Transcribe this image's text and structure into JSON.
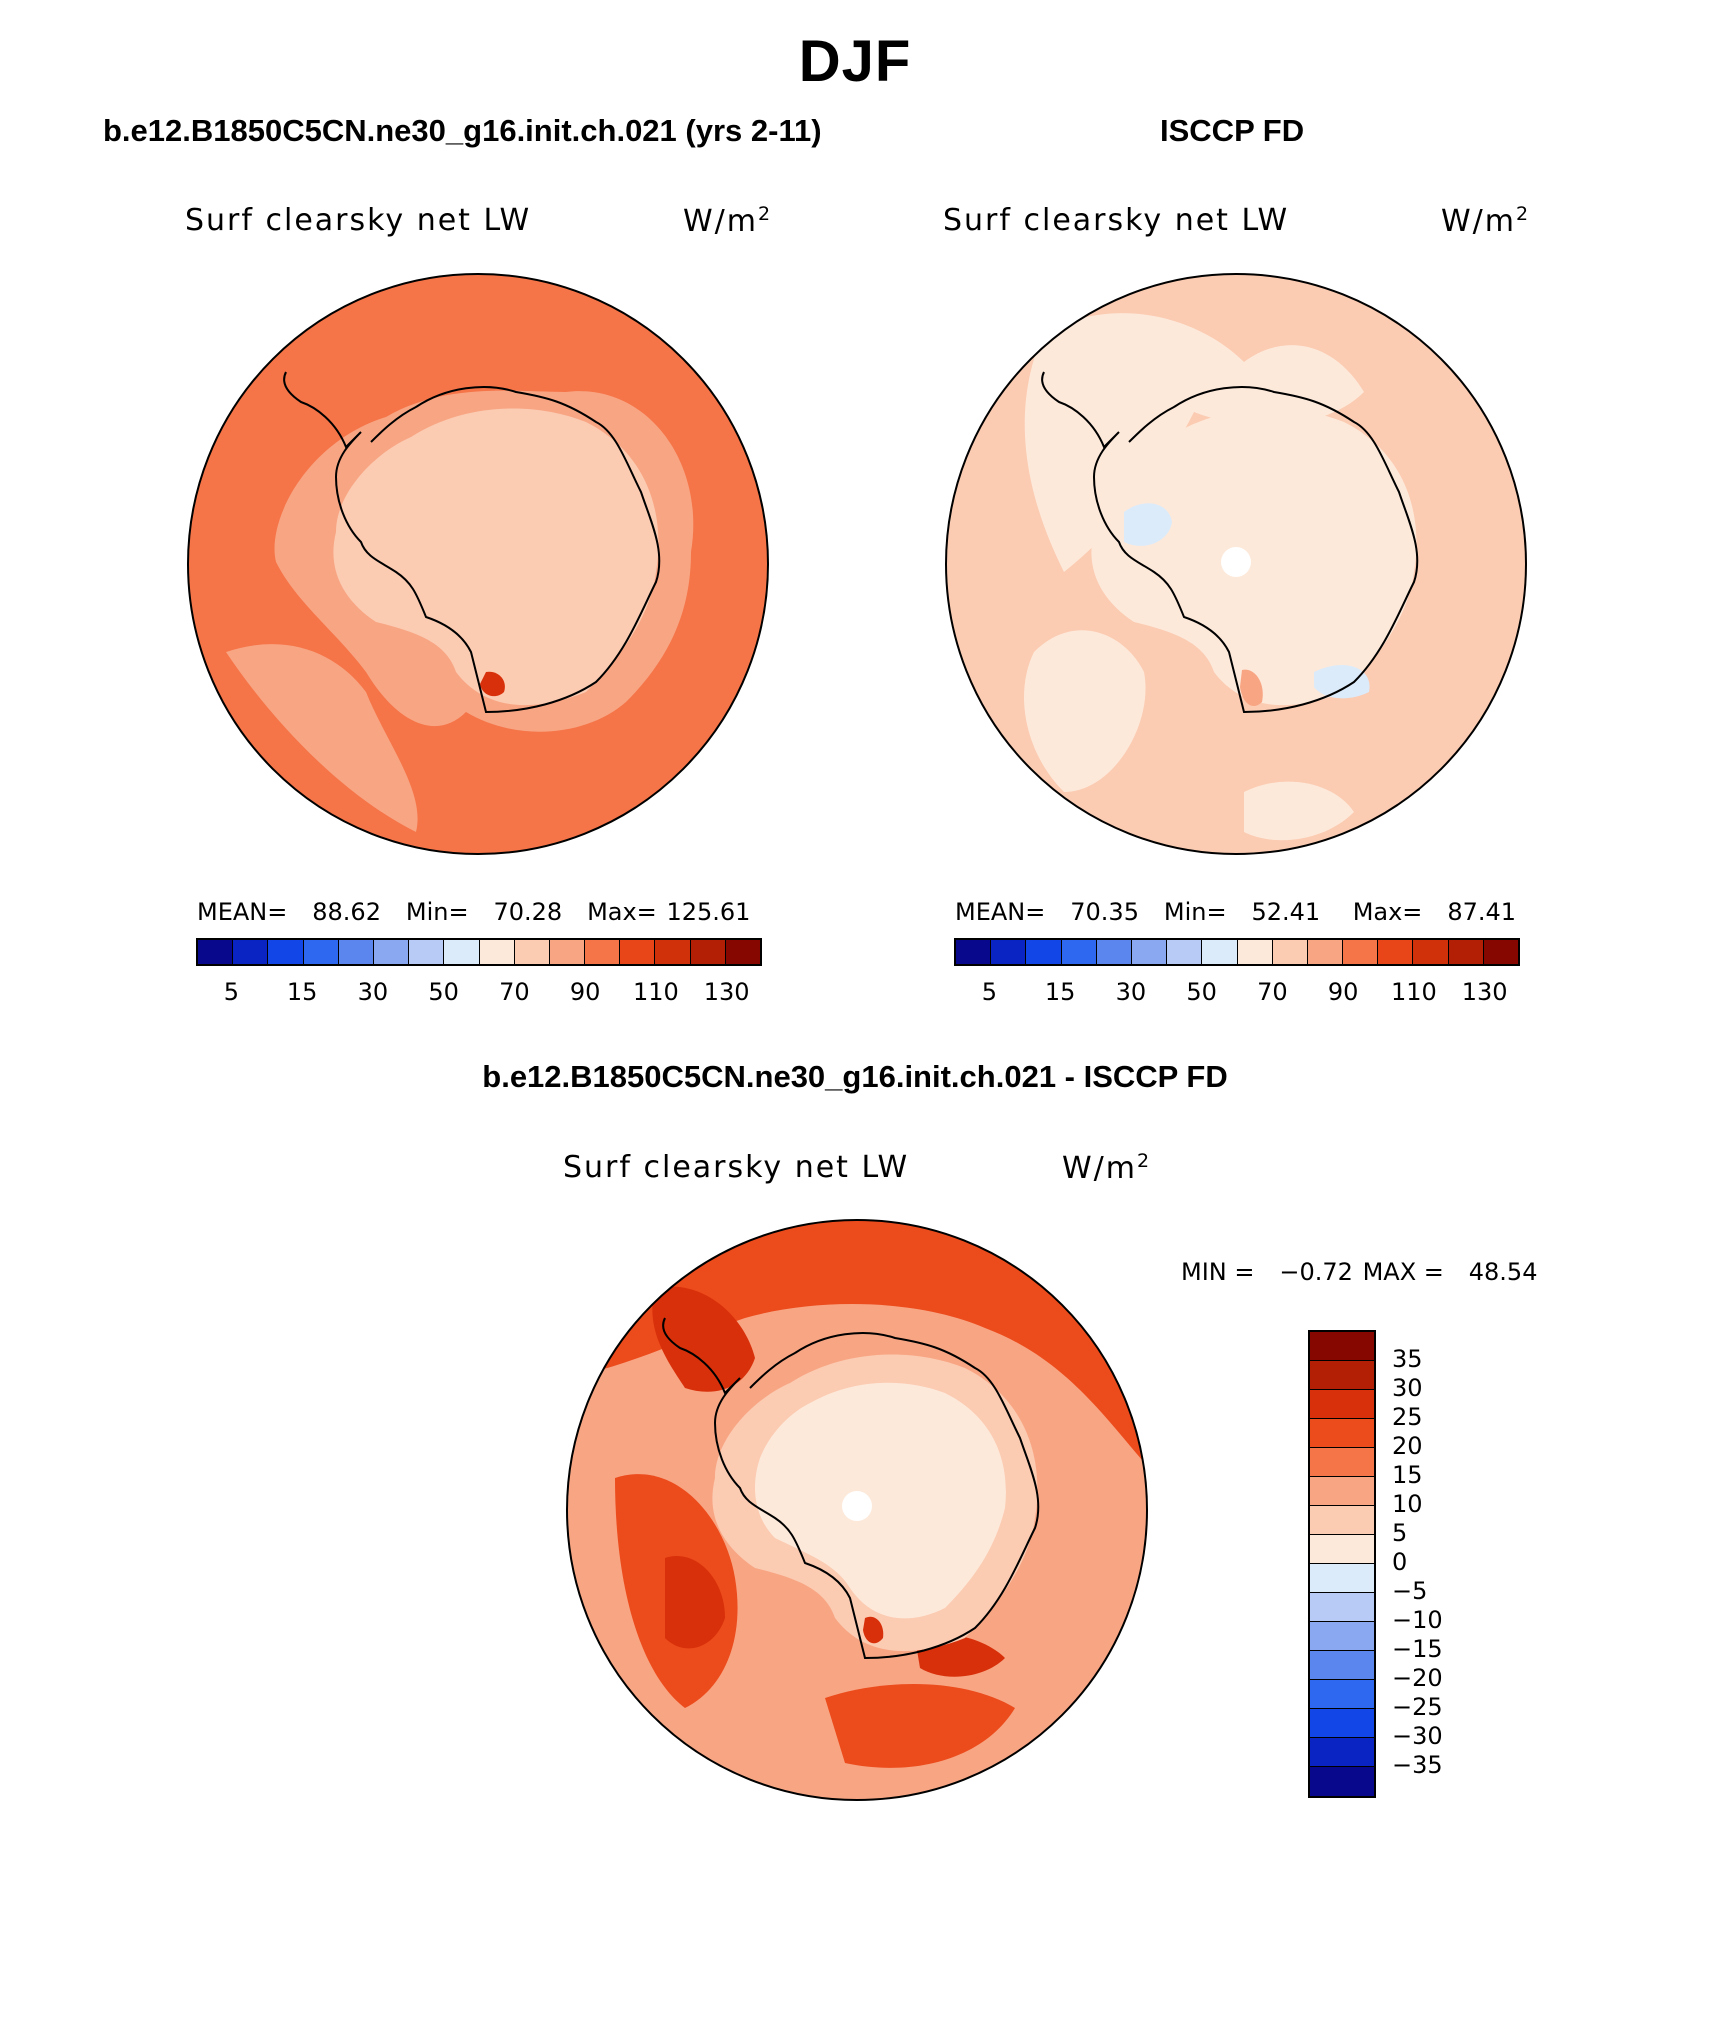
{
  "figure_title": "DJF",
  "panels": {
    "model": {
      "title": "b.e12.B1850C5CN.ne30_g16.init.ch.021 (yrs 2-11)",
      "variable": "Surf clearsky net LW",
      "units_base": "W/m",
      "units_exp": "2",
      "mean_label": "MEAN=",
      "mean": "88.62",
      "min_label": "Min=",
      "min": "70.28",
      "max_label": "Max=",
      "max": "125.61",
      "ocean_level": "90–110",
      "continent_level": "70–90"
    },
    "obs": {
      "title": "ISCCP FD",
      "variable": "Surf clearsky net LW",
      "units_base": "W/m",
      "units_exp": "2",
      "mean_label": "MEAN=",
      "mean": "70.35",
      "min_label": "Min=",
      "min": "52.41",
      "max_label": "Max=",
      "max": "87.41",
      "ocean_level": "70–90",
      "continent_level": "50–70"
    },
    "diff": {
      "title": "b.e12.B1850C5CN.ne30_g16.init.ch.021 - ISCCP FD",
      "variable": "Surf clearsky net LW",
      "units_base": "W/m",
      "units_exp": "2",
      "min_label": "MIN =",
      "min": "−0.72",
      "max_label": "MAX =",
      "max": "48.54",
      "ocean_level": "15–25",
      "continent_level": "0–10"
    }
  },
  "colorbars": {
    "abs": {
      "colors": [
        "#08088c",
        "#0a24c4",
        "#1346e6",
        "#2f68f0",
        "#5a86ee",
        "#8aa8f2",
        "#b7cbf6",
        "#dcebfa",
        "#fde9da",
        "#fbcbb2",
        "#f8a583",
        "#f57448",
        "#e84618",
        "#d0300a",
        "#b31f05",
        "#860600"
      ],
      "tick_labels": [
        "5",
        "15",
        "30",
        "50",
        "70",
        "90",
        "110",
        "130"
      ]
    },
    "diff": {
      "colors": [
        "#860600",
        "#b31f05",
        "#d8300a",
        "#ec4b1c",
        "#f57448",
        "#f8a583",
        "#fbcbb2",
        "#fde9da",
        "#dcebfa",
        "#b7cbf6",
        "#8aa8f2",
        "#5a86ee",
        "#2f68f0",
        "#1346e6",
        "#0a24c4",
        "#08088c"
      ],
      "tick_labels": [
        "35",
        "30",
        "25",
        "20",
        "15",
        "10",
        "5",
        "0",
        "−5",
        "−10",
        "−15",
        "−20",
        "−25",
        "−30",
        "−35"
      ]
    }
  },
  "map_colors": {
    "model_ocean": "#f57448",
    "model_land": "#fbcbb2",
    "model_coast_band": "#f8a583",
    "model_hot": "#d8300a",
    "obs_ocean": "#fbcbb2",
    "obs_land": "#fde9da",
    "obs_cold": "#dcebfa",
    "obs_warm": "#f8a583",
    "diff_ocean": "#f8a583",
    "diff_hi": "#ec4b1c",
    "diff_hot": "#d8300a",
    "diff_land": "#fde9da",
    "diff_land2": "#fbcbb2",
    "diff_hole": "#ffffff"
  }
}
